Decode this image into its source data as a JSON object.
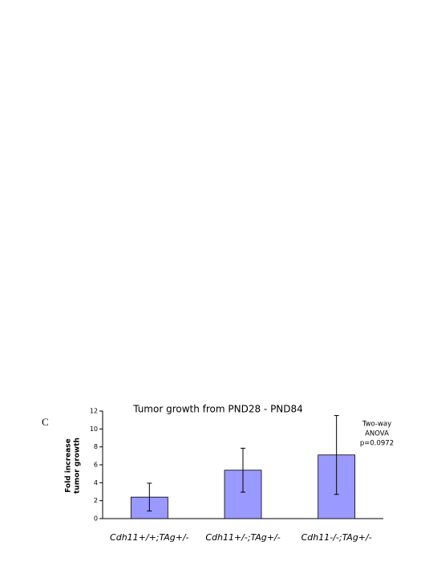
{
  "chart_data": {
    "type": "bar",
    "panel_label": "C",
    "title": "Tumor growth from PND28 - PND84",
    "ylabel": [
      "Fold increase",
      "tumor growth"
    ],
    "annotation": [
      "Two-way",
      "ANOVA",
      "p=0.0972"
    ],
    "categories": [
      "Cdh11+/+;TAg+/-",
      "Cdh11+/-;TAg+/-",
      "Cdh11-/-;TAg+/-"
    ],
    "values": [
      2.4,
      5.4,
      7.1
    ],
    "errors": [
      1.55,
      2.45,
      4.4
    ],
    "color": "#9999ff",
    "ylim": [
      0,
      12
    ],
    "yticks": [
      0,
      2,
      4,
      6,
      8,
      10,
      12
    ]
  }
}
